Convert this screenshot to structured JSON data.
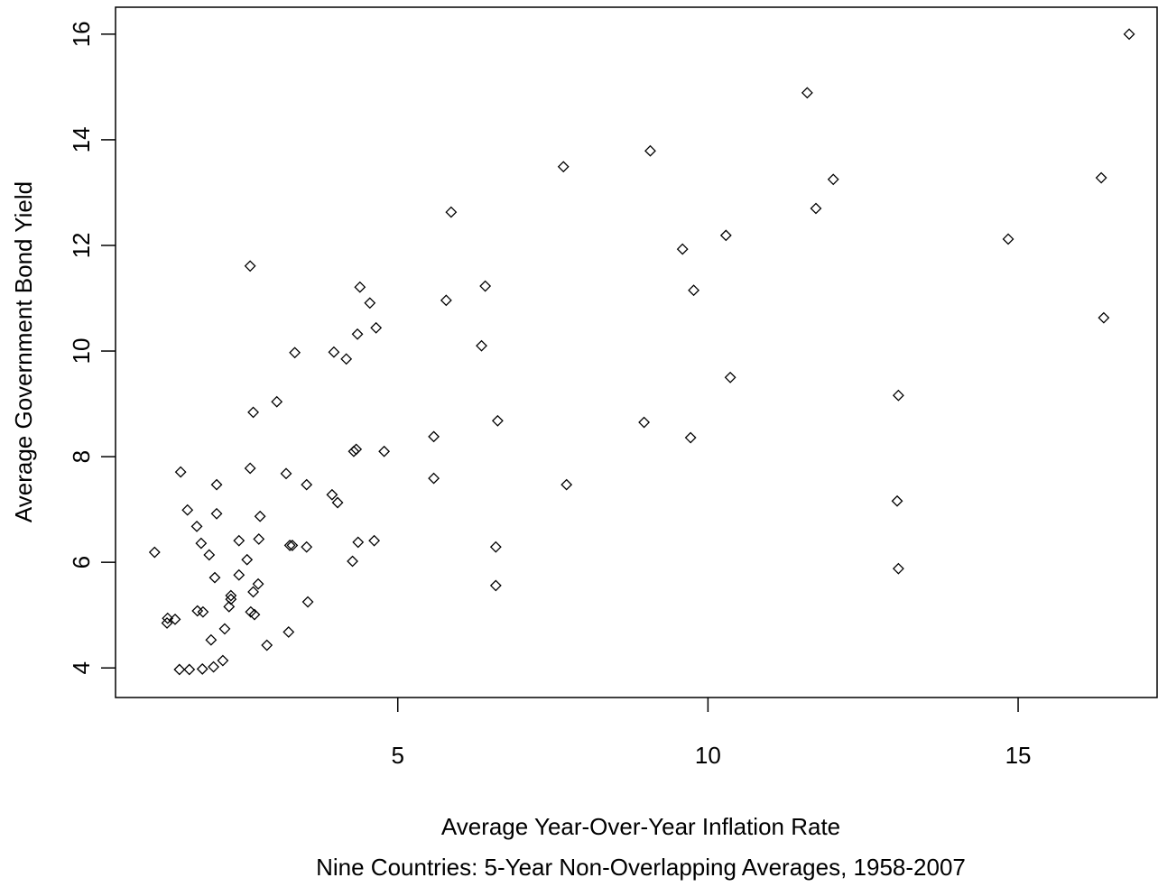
{
  "chart_data": {
    "type": "scatter",
    "xlabel": "Average Year-Over-Year Inflation Rate",
    "caption": "Nine Countries: 5-Year Non-Overlapping Averages, 1958-2007",
    "ylabel": "Average Government Bond Yield",
    "color": "#000000",
    "xlim": [
      0.45,
      17.24
    ],
    "ylim": [
      3.44,
      16.51
    ],
    "xticks": [
      5,
      10,
      15
    ],
    "yticks": [
      4,
      6,
      8,
      10,
      12,
      14,
      16
    ],
    "x": [
      1.08,
      1.28,
      1.29,
      1.41,
      1.5,
      1.48,
      1.64,
      1.61,
      1.76,
      1.77,
      1.83,
      1.86,
      1.85,
      1.96,
      1.99,
      2.03,
      2.05,
      2.08,
      2.08,
      2.18,
      2.21,
      2.28,
      2.31,
      2.31,
      2.44,
      2.44,
      2.57,
      2.62,
      2.62,
      2.63,
      2.67,
      2.67,
      2.69,
      2.75,
      2.76,
      2.78,
      2.89,
      3.05,
      3.2,
      3.24,
      3.26,
      3.3,
      3.34,
      3.53,
      3.53,
      3.55,
      3.94,
      3.97,
      4.03,
      4.17,
      4.27,
      4.29,
      4.33,
      4.35,
      4.36,
      4.39,
      4.55,
      4.62,
      4.65,
      4.78,
      5.58,
      5.58,
      5.78,
      5.86,
      6.35,
      6.41,
      6.58,
      6.58,
      6.61,
      7.67,
      7.72,
      8.97,
      9.07,
      9.59,
      9.72,
      9.77,
      10.29,
      10.36,
      11.6,
      11.74,
      12.02,
      13.07,
      13.05,
      13.07,
      14.84,
      16.34,
      16.38,
      16.79
    ],
    "values": [
      6.19,
      4.85,
      4.94,
      4.92,
      7.71,
      3.97,
      3.97,
      6.99,
      6.68,
      5.08,
      6.36,
      5.06,
      3.98,
      6.14,
      4.53,
      4.02,
      5.71,
      6.92,
      7.47,
      4.14,
      4.74,
      5.16,
      5.37,
      5.3,
      6.41,
      5.76,
      6.05,
      11.61,
      7.78,
      5.06,
      8.84,
      5.44,
      5.01,
      5.59,
      6.44,
      6.87,
      4.43,
      9.04,
      7.68,
      4.68,
      6.32,
      6.32,
      9.97,
      7.47,
      6.29,
      5.25,
      7.28,
      9.98,
      7.13,
      9.85,
      6.02,
      8.1,
      8.14,
      10.32,
      6.38,
      11.21,
      10.91,
      6.41,
      10.44,
      8.1,
      8.38,
      7.59,
      10.96,
      12.63,
      10.1,
      11.23,
      6.29,
      5.56,
      8.68,
      13.49,
      7.47,
      8.65,
      13.79,
      11.93,
      8.36,
      11.15,
      12.19,
      9.5,
      14.89,
      12.7,
      13.25,
      9.16,
      7.16,
      5.88,
      12.12,
      13.28,
      10.63,
      16.0
    ]
  }
}
